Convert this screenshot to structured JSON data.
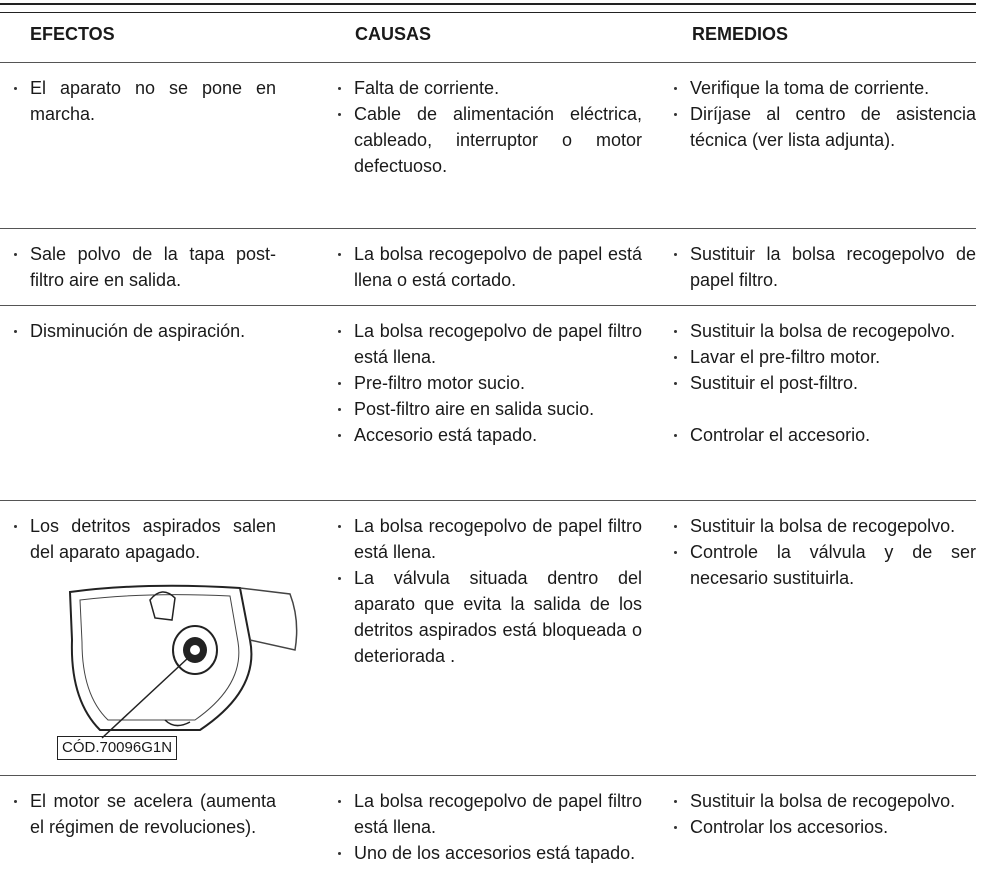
{
  "header": {
    "columns": [
      "EFECTOS",
      "CAUSAS",
      "REMEDIOS"
    ]
  },
  "code_label": "CÓD.70096G1N",
  "rows": [
    {
      "effects": [
        "El aparato no se pone en marcha."
      ],
      "causes": [
        "Falta de corriente.",
        "Cable de alimentación eléctrica, cableado, interruptor o motor defectuoso."
      ],
      "remedies": [
        "Verifique la toma de corriente.",
        "Diríjase al centro de asistencia técnica (ver lista adjunta)."
      ]
    },
    {
      "effects": [
        "Sale polvo de la tapa post-filtro aire en salida."
      ],
      "causes": [
        "La bolsa recogepolvo de papel está llena o está cortado."
      ],
      "remedies": [
        "Sustituir la bolsa recogepolvo de papel filtro."
      ]
    },
    {
      "effects": [
        "Disminución de aspiración."
      ],
      "causes": [
        "La bolsa recogepolvo de papel filtro está llena.",
        "Pre-filtro motor sucio.",
        "Post-filtro aire en salida sucio.",
        "Accesorio está tapado."
      ],
      "remedies": [
        "Sustituir la bolsa de recogepolvo.",
        "Lavar el pre-filtro motor.",
        "Sustituir el post-filtro.",
        "Controlar el accesorio."
      ]
    },
    {
      "effects": [
        "Los detritos aspirados salen del aparato apagado."
      ],
      "causes": [
        "La bolsa recogepolvo de papel filtro está llena.",
        "La válvula situada dentro del aparato que evita la salida de los detritos aspirados está bloqueada o deteriorada ."
      ],
      "remedies": [
        "Sustituir la bolsa de recogepolvo.",
        "Controle la válvula y de ser necesario sustituirla."
      ]
    },
    {
      "effects": [
        "El motor se acelera (aumenta el régimen de revoluciones)."
      ],
      "causes": [
        "La bolsa recogepolvo de papel filtro está llena.",
        "Uno de los accesorios está tapado."
      ],
      "remedies": [
        "Sustituir la bolsa de recogepolvo.",
        "Controlar los accesorios."
      ]
    }
  ]
}
